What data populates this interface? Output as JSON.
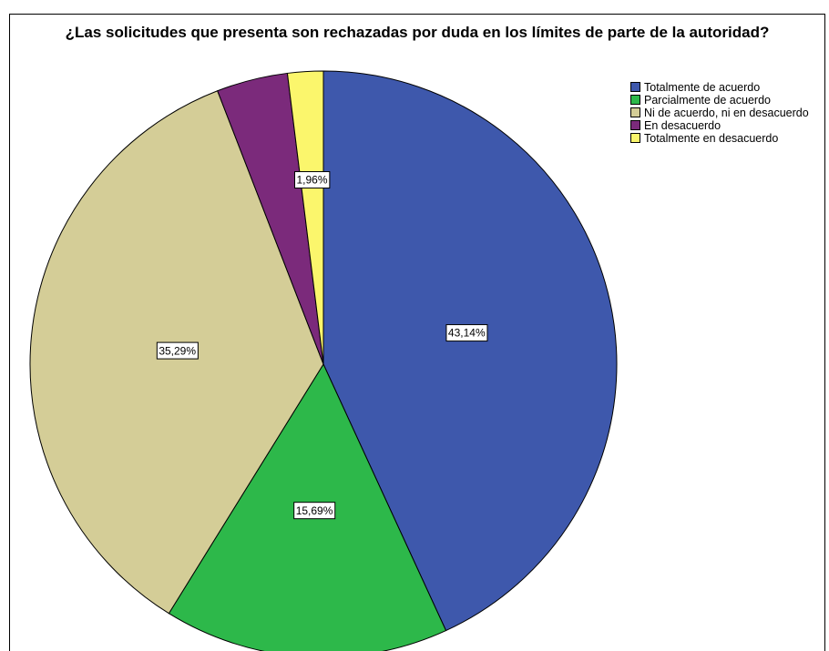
{
  "chart_data": {
    "type": "pie",
    "title": "¿Las solicitudes que presenta son rechazadas por duda en los límites de parte de la autoridad?",
    "categories": [
      "Totalmente de acuerdo",
      "Parcialmente de acuerdo",
      "Ni de acuerdo, ni en desacuerdo",
      "En desacuerdo",
      "Totalmente en desacuerdo"
    ],
    "values": [
      43.14,
      15.69,
      35.29,
      3.92,
      1.96
    ],
    "value_labels": [
      "43,14%",
      "15,69%",
      "35,29%",
      null,
      "1,96%"
    ],
    "colors": [
      "#3e58ac",
      "#2db84a",
      "#d4cd97",
      "#7b2a7b",
      "#fbf66c"
    ],
    "legend": "top-right"
  }
}
